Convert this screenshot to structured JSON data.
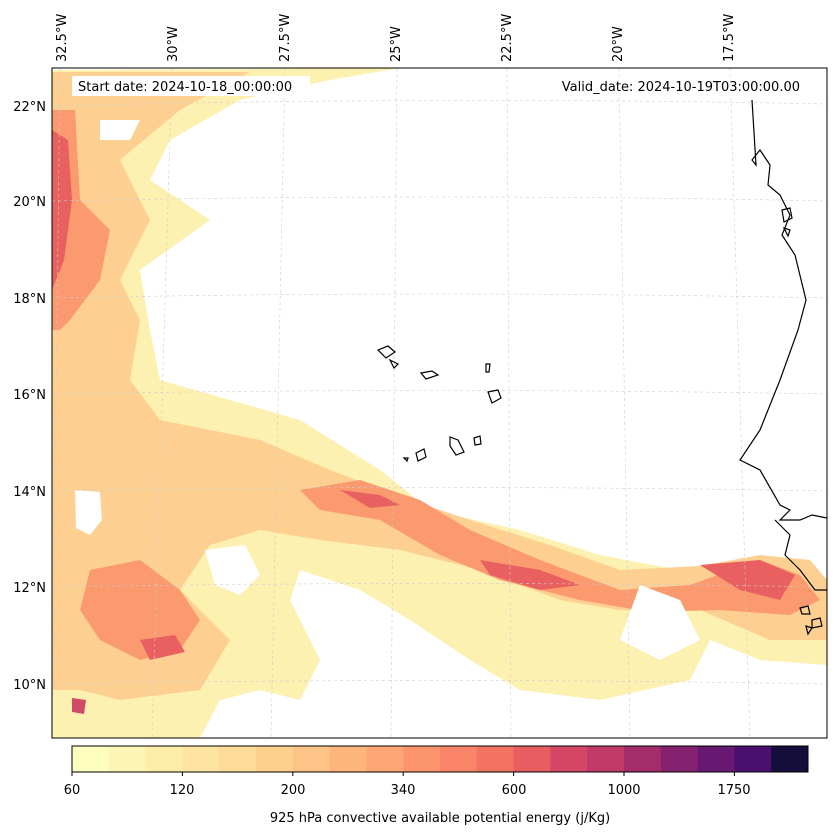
{
  "header": {
    "start_date": "Start date: 2024-10-18_00:00:00",
    "valid_date": "Valid_date: 2024-10-19T03:00:00.00"
  },
  "axes": {
    "longitude_labels": [
      "32.5°W",
      "30°W",
      "27.5°W",
      "25°W",
      "22.5°W",
      "20°W",
      "17.5°W"
    ],
    "latitude_labels": [
      "22°N",
      "20°N",
      "18°N",
      "16°N",
      "14°N",
      "12°N",
      "10°N"
    ]
  },
  "colorbar": {
    "label": "925 hPa convective available potential energy (j/Kg)",
    "tick_labels": [
      "60",
      "120",
      "200",
      "340",
      "600",
      "1000",
      "1750"
    ],
    "colors": [
      "#fcfdbf",
      "#fcf5b3",
      "#fdeda8",
      "#fde4a0",
      "#fedb97",
      "#fed08d",
      "#fec487",
      "#feb67d",
      "#fea674",
      "#fc956d",
      "#f98468",
      "#f37363",
      "#e85d61",
      "#d44663",
      "#bf3a66",
      "#a32d6b",
      "#85226f",
      "#671972",
      "#4a1070",
      "#160e3a"
    ]
  },
  "colors": {
    "land_outline": "#000000",
    "grid": "#cccccc",
    "frame": "#000000"
  }
}
